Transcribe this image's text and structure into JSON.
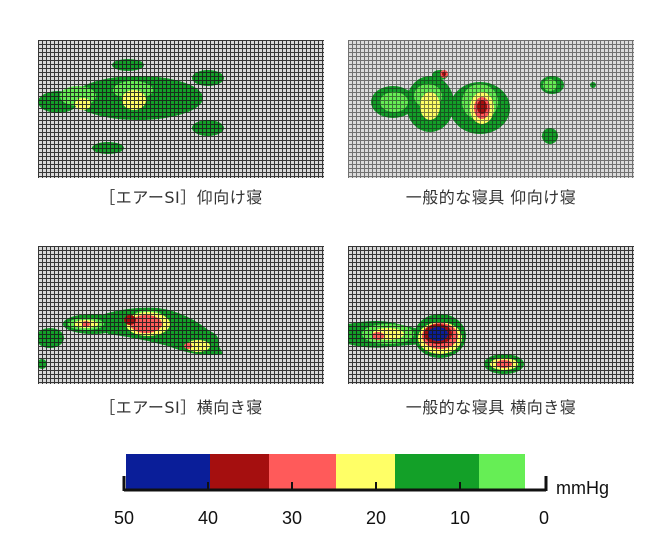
{
  "chart_data": {
    "type": "heatmap",
    "panels": [
      {
        "caption": "［エアーSI］仰向け寝",
        "view": "supine",
        "peak_mmHg": 22
      },
      {
        "caption": "一般的な寝具 仰向け寝",
        "view": "supine",
        "peak_mmHg": 40
      },
      {
        "caption": "［エアーSI］横向き寝",
        "view": "side",
        "peak_mmHg": 38
      },
      {
        "caption": "一般的な寝具 横向き寝",
        "view": "side",
        "peak_mmHg": 50
      }
    ],
    "scale": {
      "unit": "mmHg",
      "ticks": [
        "50",
        "40",
        "30",
        "20",
        "10",
        "0"
      ],
      "range": [
        0,
        50
      ],
      "bands": [
        {
          "from": 50,
          "to": 40,
          "color": "#0a1e99"
        },
        {
          "from": 40,
          "to": 33,
          "color": "#a50f0f"
        },
        {
          "from": 33,
          "to": 25,
          "color": "#ff5a5a"
        },
        {
          "from": 25,
          "to": 18,
          "color": "#ffff66"
        },
        {
          "from": 18,
          "to": 8,
          "color": "#13a028"
        },
        {
          "from": 8,
          "to": 2.5,
          "color": "#66ee55"
        }
      ]
    }
  }
}
